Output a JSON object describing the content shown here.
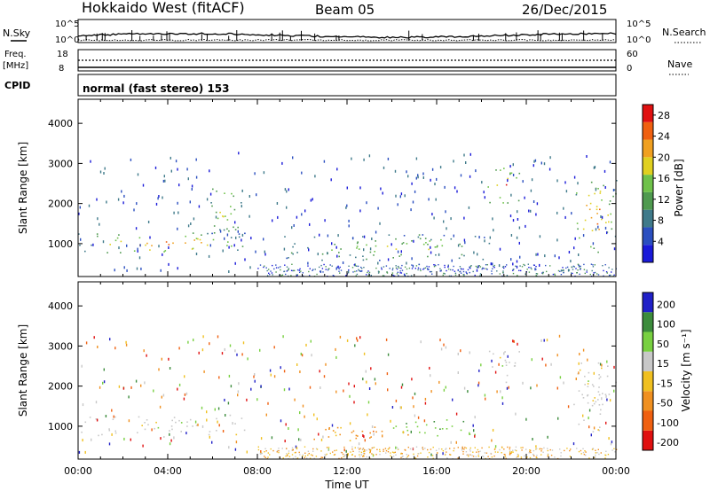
{
  "header": {
    "station": "Hokkaido West (fitACF)",
    "beam": "Beam 05",
    "date": "26/Dec/2015"
  },
  "strip_labels": {
    "nsky": "N.Sky",
    "nsearch": "N.Search",
    "freq": "Freq.",
    "freq_unit": "[MHz]",
    "nave": "Nave",
    "cpid": "CPID",
    "noise_ticks_left": [
      "10^5",
      "10^0"
    ],
    "noise_ticks_right": [
      "10^5",
      "10^0"
    ],
    "freq_ticks": [
      "18",
      "8"
    ],
    "nave_ticks": [
      "60",
      "0"
    ]
  },
  "cpid_text": "normal (fast stereo) 153",
  "colors": {
    "power": [
      "#1a1ad9",
      "#2b4fc0",
      "#3f7a8a",
      "#4f9a4f",
      "#6fc24a",
      "#e0d020",
      "#f0a020",
      "#f06010",
      "#e01010"
    ],
    "velocity": [
      "#2020c8",
      "#3c8c3c",
      "#78d040",
      "#c8c8c8",
      "#f0c020",
      "#f09020",
      "#f06010",
      "#e01010"
    ]
  },
  "chart_data": [
    {
      "type": "heatmap",
      "name": "power",
      "xlabel": "",
      "ylabel": "Slant Range [km]",
      "x_ticks": [
        "00:00",
        "04:00",
        "08:00",
        "12:00",
        "16:00",
        "20:00",
        "00:00"
      ],
      "xlim": [
        0,
        24
      ],
      "ylim": [
        180,
        4600
      ],
      "y_ticks": [
        1000,
        2000,
        3000,
        4000
      ],
      "colorbar": {
        "label": "Power [dB]",
        "ticks": [
          4,
          8,
          12,
          16,
          20,
          24,
          28
        ],
        "range": [
          0,
          30
        ]
      },
      "echo_regions": [
        {
          "time": [
            0,
            7.5
          ],
          "range": [
            750,
            1300
          ],
          "peak_db": 28
        },
        {
          "time": [
            5.5,
            7.5
          ],
          "range": [
            1200,
            2500
          ],
          "peak_db": 20
        },
        {
          "time": [
            9,
            18.5
          ],
          "range": [
            600,
            1250
          ],
          "peak_db": 18
        },
        {
          "time": [
            18.2,
            19.7
          ],
          "range": [
            2000,
            2900
          ],
          "peak_db": 30
        },
        {
          "time": [
            22,
            24
          ],
          "range": [
            800,
            2600
          ],
          "peak_db": 28
        }
      ]
    },
    {
      "type": "heatmap",
      "name": "velocity",
      "xlabel": "Time UT",
      "ylabel": "Slant Range [km]",
      "x_ticks": [
        "00:00",
        "04:00",
        "08:00",
        "12:00",
        "16:00",
        "20:00",
        "00:00"
      ],
      "xlim": [
        0,
        24
      ],
      "ylim": [
        180,
        4600
      ],
      "y_ticks": [
        1000,
        2000,
        3000,
        4000
      ],
      "colorbar": {
        "label": "Velocity [m s⁻¹]",
        "ticks": [
          "200",
          "100",
          "50",
          "15",
          "-15",
          "-50",
          "-100",
          "-200"
        ],
        "range": [
          -250,
          250
        ]
      },
      "echo_regions": [
        {
          "time": [
            0,
            7.5
          ],
          "range": [
            750,
            1300
          ],
          "velocity": 0
        },
        {
          "time": [
            10,
            15
          ],
          "range": [
            650,
            1000
          ],
          "velocity": -60
        },
        {
          "time": [
            14,
            18
          ],
          "range": [
            700,
            1200
          ],
          "velocity": 60
        },
        {
          "time": [
            18.2,
            19.7
          ],
          "range": [
            2000,
            2900
          ],
          "velocity": 0
        },
        {
          "time": [
            22,
            24
          ],
          "range": [
            800,
            2600
          ],
          "velocity": 0
        }
      ]
    }
  ]
}
